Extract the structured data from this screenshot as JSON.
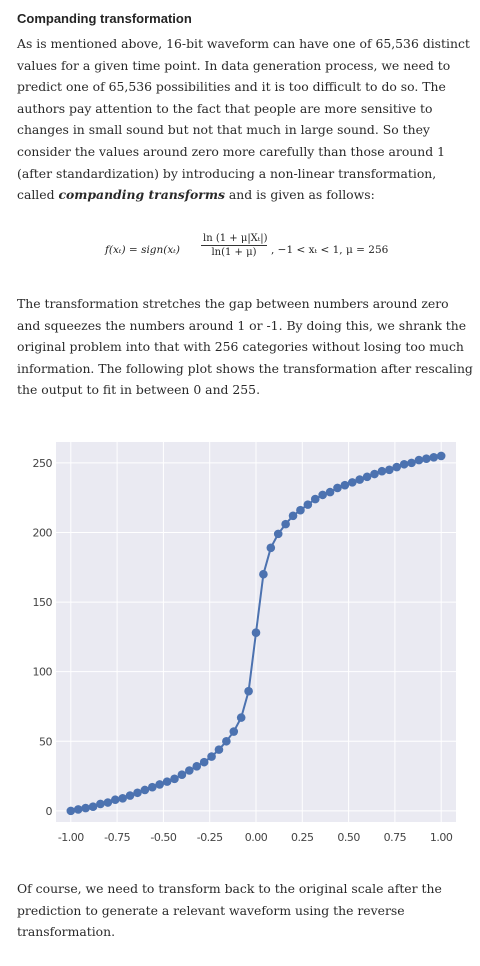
{
  "heading": "Companding transformation",
  "paragraph1_a": "As is mentioned above, 16-bit waveform can have one of 65,536 distinct values for a given time point. In data generation process, we need to predict one of 65,536 possibilities and it is too difficult to do so. The authors pay attention to the fact that people are more sensitive to changes in small sound but not that much in large sound. So they consider the values around zero more carefully than those around 1 (after standardization) by introducing a non-linear transformation, called ",
  "paragraph1_em": "companding transforms",
  "paragraph1_b": " and is given as follows:",
  "formula": {
    "lhs": "f(xₜ) = sign(xₜ)",
    "numerator": "ln (1 + μ|Xₜ|)",
    "denominator": "ln(1 + μ)",
    "rhs": ", −1 < xₜ < 1, μ = 256"
  },
  "paragraph2": "The transformation stretches the gap between numbers around zero and squeezes the numbers around 1 or -1. By doing this, we shrank the original problem into that with 256 categories without losing too much information. The following plot shows the transformation after rescaling the output to fit in between 0 and 255.",
  "paragraph3": "Of course, we need to transform back to the original scale after the prediction to generate a relevant waveform using the reverse transformation.",
  "colors": {
    "series": "#4c72b0",
    "plot_bg": "#eaeaf2",
    "grid": "#ffffff"
  },
  "chart_data": {
    "type": "line",
    "function": "mu-law companding rescaled to 0-255, mu = 256",
    "x": [
      -1.0,
      -0.96,
      -0.92,
      -0.88,
      -0.84,
      -0.8,
      -0.76,
      -0.72,
      -0.68,
      -0.64,
      -0.6,
      -0.56,
      -0.52,
      -0.48,
      -0.44,
      -0.4,
      -0.36,
      -0.32,
      -0.28,
      -0.24,
      -0.2,
      -0.16,
      -0.12,
      -0.08,
      -0.04,
      0.0,
      0.04,
      0.08,
      0.12,
      0.16,
      0.2,
      0.24,
      0.28,
      0.32,
      0.36,
      0.4,
      0.44,
      0.48,
      0.52,
      0.56,
      0.6,
      0.64,
      0.68,
      0.72,
      0.76,
      0.8,
      0.84,
      0.88,
      0.92,
      0.96,
      1.0
    ],
    "y": [
      0,
      1,
      2,
      3,
      5,
      6,
      8,
      9,
      11,
      13,
      15,
      17,
      19,
      21,
      23,
      26,
      29,
      32,
      35,
      39,
      44,
      50,
      57,
      67,
      86,
      128,
      170,
      189,
      199,
      206,
      212,
      216,
      220,
      224,
      227,
      229,
      232,
      234,
      236,
      238,
      240,
      242,
      244,
      245,
      247,
      249,
      250,
      252,
      253,
      254,
      255
    ],
    "xlim": [
      -1.08,
      1.08
    ],
    "ylim": [
      -8,
      265
    ],
    "xticks": [
      "-1.00",
      "-0.75",
      "-0.50",
      "-0.25",
      "0.00",
      "0.25",
      "0.50",
      "0.75",
      "1.00"
    ],
    "xtick_values": [
      -1.0,
      -0.75,
      -0.5,
      -0.25,
      0.0,
      0.25,
      0.5,
      0.75,
      1.0
    ],
    "yticks": [
      "0",
      "50",
      "100",
      "150",
      "200",
      "250"
    ],
    "ytick_values": [
      0,
      50,
      100,
      150,
      200,
      250
    ],
    "grid": true
  }
}
